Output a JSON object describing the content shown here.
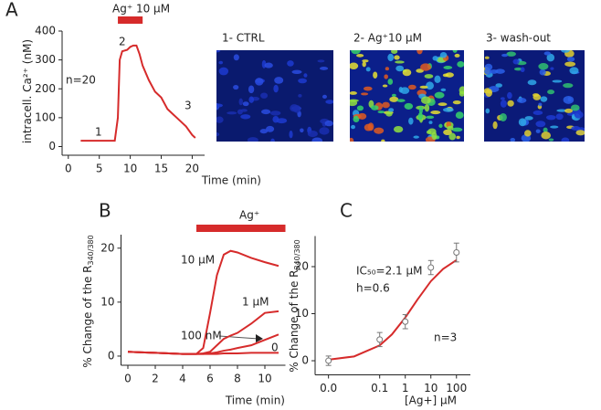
{
  "panel_labels": [
    "A",
    "B",
    "C"
  ],
  "images": [
    {
      "label": "1- CTRL"
    },
    {
      "label": "2- Ag⁺10 μM"
    },
    {
      "label": "3- wash-out"
    }
  ],
  "chart_data": [
    {
      "type": "line",
      "color": "#d62b2b",
      "ylabel": "intracell. Ca²⁺ (nM)",
      "xlabel": "Time (min)",
      "x": [
        2,
        7.5,
        8,
        8.3,
        8.7,
        9.5,
        10,
        10.5,
        11,
        11.5,
        12,
        13,
        14,
        15,
        16,
        17,
        18,
        19,
        20,
        20.5
      ],
      "values": [
        20,
        20,
        100,
        300,
        330,
        335,
        345,
        350,
        350,
        320,
        280,
        230,
        190,
        170,
        130,
        110,
        90,
        70,
        40,
        30
      ],
      "xlim": [
        -1,
        22
      ],
      "xticks": [
        0,
        5,
        10,
        15,
        20
      ],
      "ylim": [
        -30,
        400
      ],
      "yticks": [
        0,
        100,
        200,
        300,
        400
      ],
      "treatment": {
        "label": "Ag⁺ 10 μM",
        "start": 8,
        "end": 12
      },
      "annotations": [
        "n=20",
        "1",
        "2",
        "3"
      ]
    },
    {
      "type": "line",
      "color": "#d62b2b",
      "ylabel": "% Change of the R",
      "ylabel_sub": "340/380",
      "xlabel": "Time (min)",
      "x": [
        0,
        1,
        2,
        3,
        4,
        5,
        5.5,
        6,
        6.5,
        7,
        7.5,
        8,
        9,
        10,
        11
      ],
      "series": [
        {
          "name": "10 μM",
          "values": [
            0.8,
            0.7,
            0.6,
            0.5,
            0.4,
            0.4,
            1.5,
            8,
            15,
            18.8,
            19.5,
            19.2,
            18.2,
            17.4,
            16.7
          ]
        },
        {
          "name": "1 μM",
          "values": [
            0.8,
            0.7,
            0.6,
            0.5,
            0.4,
            0.4,
            0.5,
            0.8,
            2,
            3.2,
            3.8,
            4.3,
            6,
            8,
            8.3
          ]
        },
        {
          "name": "100 nM",
          "values": [
            0.8,
            0.7,
            0.6,
            0.5,
            0.4,
            0.4,
            0.4,
            0.5,
            0.7,
            1,
            1.2,
            1.5,
            2,
            3,
            4
          ]
        },
        {
          "name": "0",
          "values": [
            0.8,
            0.7,
            0.6,
            0.5,
            0.4,
            0.4,
            0.4,
            0.4,
            0.4,
            0.5,
            0.5,
            0.5,
            0.6,
            0.6,
            0.6
          ]
        }
      ],
      "xlim": [
        -0.5,
        11.5
      ],
      "xticks": [
        0,
        2,
        4,
        6,
        8,
        10
      ],
      "ylim": [
        -1.7,
        22.5
      ],
      "yticks": [
        0,
        10,
        20
      ],
      "treatment": {
        "label": "Ag⁺",
        "start": 5,
        "end": 11.5
      }
    },
    {
      "type": "scatter",
      "color": "#d62b2b",
      "point_color": "#777777",
      "log_x": true,
      "ylabel": "% Change of the R",
      "ylabel_sub": "340/380",
      "xlabel": "[Ag+] μM",
      "x": [
        0.001,
        0.1,
        1,
        10,
        100
      ],
      "values": [
        0,
        4.5,
        8.3,
        19.8,
        23
      ],
      "errors": [
        1,
        1.5,
        1.5,
        1.5,
        2
      ],
      "fit": {
        "x": [
          0.001,
          0.01,
          0.1,
          0.3,
          1,
          3,
          10,
          30,
          100
        ],
        "values": [
          0.23,
          0.91,
          3.26,
          5.58,
          9.18,
          13.0,
          16.9,
          19.5,
          21.4
        ]
      },
      "xlim": [
        0.0003,
        350
      ],
      "xticks": [
        {
          "value": 0.001,
          "label": "0.0"
        },
        0.1,
        1,
        10,
        100
      ],
      "ylim": [
        -3,
        26.5
      ],
      "yticks": [
        0,
        10,
        20
      ],
      "annotations": [
        "IC₅₀=2.1 μM",
        "h=0.6",
        "n=3"
      ]
    }
  ]
}
